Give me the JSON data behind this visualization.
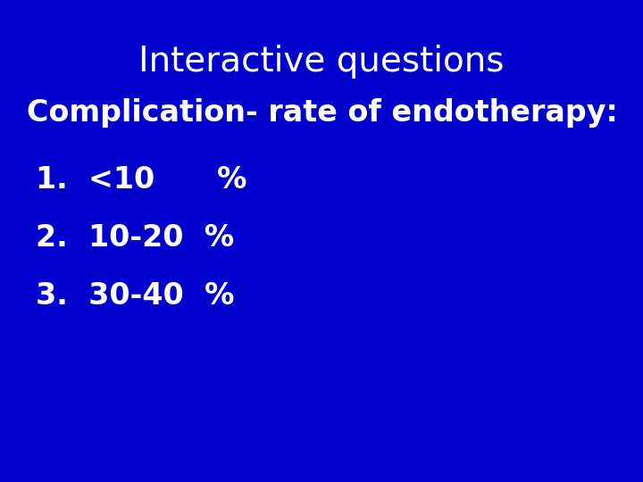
{
  "background_color": "#0000CC",
  "title": "Interactive questions",
  "title_color": "#FFFFFF",
  "title_fontsize": 28,
  "subtitle": "Complication- rate of endotherapy:",
  "subtitle_color": "#FFFFFF",
  "subtitle_fontsize": 24,
  "items": [
    "1.  <10      %",
    "2.  10-20  %",
    "3.  30-40  %"
  ],
  "items_color": "#FFFFFF",
  "items_fontsize": 24
}
